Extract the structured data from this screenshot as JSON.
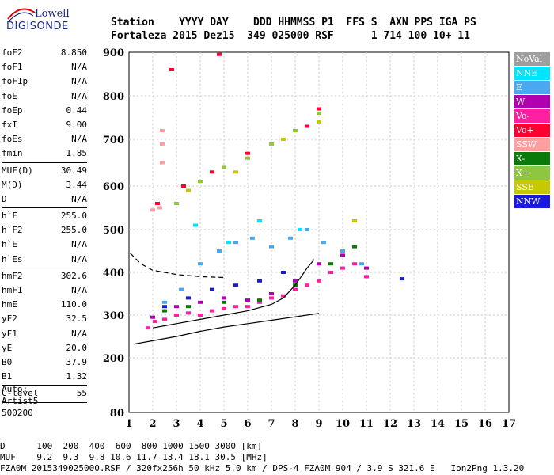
{
  "logo": {
    "line1": "Lowell",
    "line2": "DIGISONDE"
  },
  "header": {
    "labels": "Station    YYYY DAY    DDD HHMMSS P1  FFS S  AXN PPS IGA PS",
    "values": "Fortaleza 2015 Dez15  349 025000 RSF      1 714 100 10+ 11"
  },
  "params_group1": [
    {
      "k": "foF2",
      "v": "8.850"
    },
    {
      "k": "foF1",
      "v": "N/A"
    },
    {
      "k": "foF1p",
      "v": "N/A"
    },
    {
      "k": "foE",
      "v": "N/A"
    },
    {
      "k": "foEp",
      "v": "0.44"
    },
    {
      "k": "fxI",
      "v": "9.00"
    },
    {
      "k": "foEs",
      "v": "N/A"
    },
    {
      "k": "fmin",
      "v": "1.85"
    }
  ],
  "params_group2": [
    {
      "k": "MUF(D)",
      "v": "30.49"
    },
    {
      "k": "M(D)",
      "v": "3.44"
    },
    {
      "k": "D",
      "v": "N/A"
    }
  ],
  "params_group3": [
    {
      "k": "h`F",
      "v": "255.0"
    },
    {
      "k": "h`F2",
      "v": "255.0"
    },
    {
      "k": "h`E",
      "v": "N/A"
    },
    {
      "k": "h`Es",
      "v": "N/A"
    }
  ],
  "params_group4": [
    {
      "k": "hmF2",
      "v": "302.6"
    },
    {
      "k": "hmF1",
      "v": "N/A"
    },
    {
      "k": "hmE",
      "v": "110.0"
    },
    {
      "k": "yF2",
      "v": "32.5"
    },
    {
      "k": "yF1",
      "v": "N/A"
    },
    {
      "k": "yE",
      "v": "20.0"
    },
    {
      "k": "B0",
      "v": "37.9"
    },
    {
      "k": "B1",
      "v": "1.32"
    }
  ],
  "params_group5": [
    {
      "k": "C-level",
      "v": "55"
    }
  ],
  "auto": {
    "line1": "Auto:",
    "line2": "Artist5",
    "line3": "500200"
  },
  "legend": [
    {
      "label": "NoVal",
      "color": "#9e9e9e"
    },
    {
      "label": "NNE",
      "color": "#00e5ff"
    },
    {
      "label": "E",
      "color": "#4aa8f0"
    },
    {
      "label": "W",
      "color": "#b000b0"
    },
    {
      "label": "Vo-",
      "color": "#ff1fa0"
    },
    {
      "label": "Vo+",
      "color": "#ff0030"
    },
    {
      "label": "SSW",
      "color": "#ff9f9f"
    },
    {
      "label": "X-",
      "color": "#0a7a0a"
    },
    {
      "label": "X+",
      "color": "#8ec63f"
    },
    {
      "label": "SSE",
      "color": "#c8c800"
    },
    {
      "label": "NNW",
      "color": "#1a1adc"
    }
  ],
  "footer": {
    "line1": "D      100  200  400  600  800 1000 1500 3000 [km]",
    "line2": "MUF    9.2  9.3  9.8 10.6 11.7 13.4 18.1 30.5 [MHz]",
    "line3": "FZA0M_2015349025000.RSF / 320fx256h 50 kHz 5.0 km / DPS-4 FZA0M 904 / 3.9 S 321.6 E   Ion2Png 1.3.20"
  },
  "chart_data": {
    "type": "scatter",
    "xlim": [
      1,
      17
    ],
    "ylim": [
      80,
      900
    ],
    "x_ticks": [
      "1",
      "2",
      "3",
      "4",
      "5",
      "6",
      "7",
      "8",
      "9",
      "10",
      "11",
      "12",
      "13",
      "14",
      "15",
      "16",
      "17"
    ],
    "y_ticks": [
      "80",
      "200",
      "300",
      "400",
      "500",
      "600",
      "700",
      "800",
      "900"
    ],
    "y_tick_values": [
      80,
      200,
      300,
      400,
      500,
      600,
      700,
      800,
      900
    ],
    "grid": true,
    "series": [
      {
        "name": "Vo-",
        "color": "#ff1fa0",
        "points": [
          [
            1.8,
            270
          ],
          [
            2.1,
            285
          ],
          [
            2.5,
            290
          ],
          [
            3.0,
            300
          ],
          [
            3.5,
            305
          ],
          [
            4.0,
            300
          ],
          [
            4.5,
            310
          ],
          [
            5.0,
            315
          ],
          [
            5.5,
            320
          ],
          [
            6.0,
            320
          ],
          [
            6.5,
            330
          ],
          [
            7.0,
            340
          ],
          [
            7.5,
            345
          ],
          [
            8.0,
            360
          ],
          [
            8.5,
            370
          ],
          [
            9.0,
            380
          ],
          [
            9.5,
            400
          ],
          [
            10.0,
            410
          ],
          [
            10.5,
            420
          ],
          [
            11.0,
            390
          ]
        ]
      },
      {
        "name": "E",
        "color": "#4aa8f0",
        "points": [
          [
            2.5,
            330
          ],
          [
            3.2,
            360
          ],
          [
            4.0,
            420
          ],
          [
            4.8,
            450
          ],
          [
            5.5,
            470
          ],
          [
            6.2,
            480
          ],
          [
            7.0,
            460
          ],
          [
            7.8,
            480
          ],
          [
            8.5,
            500
          ],
          [
            9.2,
            470
          ],
          [
            10.0,
            450
          ],
          [
            10.8,
            420
          ]
        ]
      },
      {
        "name": "W",
        "color": "#b000b0",
        "points": [
          [
            2.0,
            295
          ],
          [
            3.0,
            320
          ],
          [
            4.0,
            330
          ],
          [
            5.0,
            340
          ],
          [
            6.0,
            335
          ],
          [
            7.0,
            350
          ],
          [
            8.0,
            380
          ],
          [
            9.0,
            420
          ],
          [
            10.0,
            440
          ],
          [
            11.0,
            410
          ]
        ]
      },
      {
        "name": "X-",
        "color": "#0a7a0a",
        "points": [
          [
            2.5,
            310
          ],
          [
            3.5,
            320
          ],
          [
            5.0,
            330
          ],
          [
            6.5,
            335
          ],
          [
            8.0,
            370
          ],
          [
            9.5,
            420
          ],
          [
            10.5,
            460
          ]
        ]
      },
      {
        "name": "NNW",
        "color": "#1a1adc",
        "points": [
          [
            2.5,
            320
          ],
          [
            3.5,
            340
          ],
          [
            4.5,
            360
          ],
          [
            5.5,
            370
          ],
          [
            6.5,
            380
          ],
          [
            7.5,
            400
          ],
          [
            12.5,
            385
          ]
        ]
      },
      {
        "name": "SSW",
        "color": "#ff9f9f",
        "points": [
          [
            2.4,
            650
          ],
          [
            2.4,
            690
          ],
          [
            2.4,
            720
          ],
          [
            2.0,
            545
          ],
          [
            2.3,
            550
          ]
        ]
      },
      {
        "name": "X+",
        "color": "#8ec63f",
        "points": [
          [
            3.0,
            560
          ],
          [
            4.0,
            610
          ],
          [
            5.0,
            640
          ],
          [
            6.0,
            660
          ],
          [
            7.0,
            690
          ],
          [
            8.0,
            720
          ],
          [
            9.0,
            760
          ]
        ]
      },
      {
        "name": "SSE",
        "color": "#c8c800",
        "points": [
          [
            3.5,
            590
          ],
          [
            5.5,
            630
          ],
          [
            7.5,
            700
          ],
          [
            9.0,
            740
          ],
          [
            10.5,
            520
          ]
        ]
      },
      {
        "name": "NNE",
        "color": "#00e5ff",
        "points": [
          [
            3.8,
            510
          ],
          [
            5.2,
            470
          ],
          [
            6.5,
            520
          ],
          [
            8.2,
            500
          ]
        ]
      },
      {
        "name": "Vo+",
        "color": "#ff0030",
        "points": [
          [
            2.2,
            560
          ],
          [
            3.3,
            600
          ],
          [
            4.5,
            630
          ],
          [
            6.0,
            670
          ],
          [
            8.5,
            730
          ],
          [
            9.0,
            770
          ],
          [
            2.8,
            860
          ],
          [
            4.8,
            895
          ]
        ]
      }
    ],
    "lines": [
      {
        "name": "dashed",
        "style": "dashed",
        "points": [
          [
            1.05,
            445
          ],
          [
            1.5,
            420
          ],
          [
            2.0,
            405
          ],
          [
            3.0,
            395
          ],
          [
            4.0,
            390
          ],
          [
            5.0,
            388
          ]
        ]
      },
      {
        "name": "lower",
        "style": "solid",
        "points": [
          [
            1.2,
            232
          ],
          [
            2.0,
            240
          ],
          [
            3.0,
            250
          ],
          [
            4.0,
            262
          ],
          [
            5.0,
            272
          ],
          [
            6.0,
            280
          ],
          [
            7.0,
            288
          ],
          [
            8.0,
            296
          ],
          [
            9.0,
            304
          ]
        ]
      },
      {
        "name": "profile",
        "style": "solid",
        "points": [
          [
            2.0,
            270
          ],
          [
            2.5,
            275
          ],
          [
            3.0,
            280
          ],
          [
            4.0,
            290
          ],
          [
            5.0,
            300
          ],
          [
            6.0,
            310
          ],
          [
            7.0,
            325
          ],
          [
            7.5,
            340
          ],
          [
            8.0,
            370
          ],
          [
            8.5,
            410
          ],
          [
            8.8,
            430
          ]
        ]
      }
    ]
  }
}
